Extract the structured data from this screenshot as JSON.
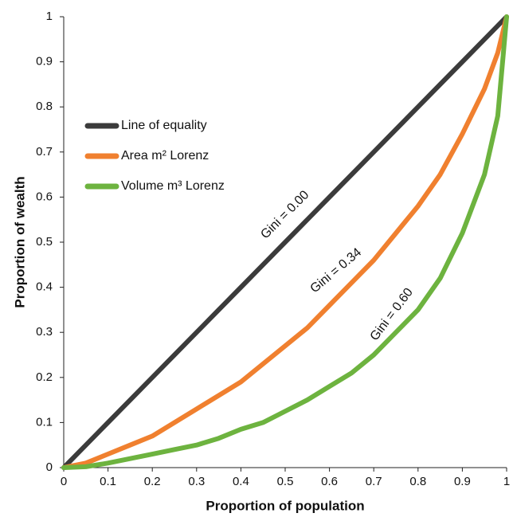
{
  "chart_data": {
    "type": "line",
    "xlabel": "Proportion of population",
    "ylabel": "Proportion of wealth",
    "x": [
      0,
      0.05,
      0.1,
      0.15,
      0.2,
      0.25,
      0.3,
      0.35,
      0.4,
      0.45,
      0.5,
      0.55,
      0.6,
      0.65,
      0.7,
      0.75,
      0.8,
      0.85,
      0.9,
      0.95,
      0.98,
      1
    ],
    "series": [
      {
        "name": "Line of equality",
        "color": "#3b3b3b",
        "values": [
          0,
          0.05,
          0.1,
          0.15,
          0.2,
          0.25,
          0.3,
          0.35,
          0.4,
          0.45,
          0.5,
          0.55,
          0.6,
          0.65,
          0.7,
          0.75,
          0.8,
          0.85,
          0.9,
          0.95,
          0.98,
          1
        ]
      },
      {
        "name": "Area m² Lorenz",
        "color": "#f0802f",
        "values": [
          0,
          0.01,
          0.03,
          0.05,
          0.07,
          0.1,
          0.13,
          0.16,
          0.19,
          0.23,
          0.27,
          0.31,
          0.36,
          0.41,
          0.46,
          0.52,
          0.58,
          0.65,
          0.74,
          0.84,
          0.92,
          1
        ]
      },
      {
        "name": "Volume m³ Lorenz",
        "color": "#6db33f",
        "values": [
          0,
          0.002,
          0.01,
          0.02,
          0.03,
          0.04,
          0.05,
          0.065,
          0.085,
          0.1,
          0.125,
          0.15,
          0.18,
          0.21,
          0.25,
          0.3,
          0.35,
          0.42,
          0.52,
          0.65,
          0.78,
          1
        ]
      }
    ],
    "annotations": [
      "Gini = 0.00",
      "Gini = 0.34",
      "Gini = 0.60"
    ],
    "xlim": [
      0,
      1
    ],
    "ylim": [
      0,
      1
    ],
    "xticks": [
      0,
      0.1,
      0.2,
      0.3,
      0.4,
      0.5,
      0.6,
      0.7,
      0.8,
      0.9,
      1
    ],
    "yticks": [
      0,
      0.1,
      0.2,
      0.3,
      0.4,
      0.5,
      0.6,
      0.7,
      0.8,
      0.9,
      1
    ],
    "legend": "upper left",
    "grid": false
  }
}
